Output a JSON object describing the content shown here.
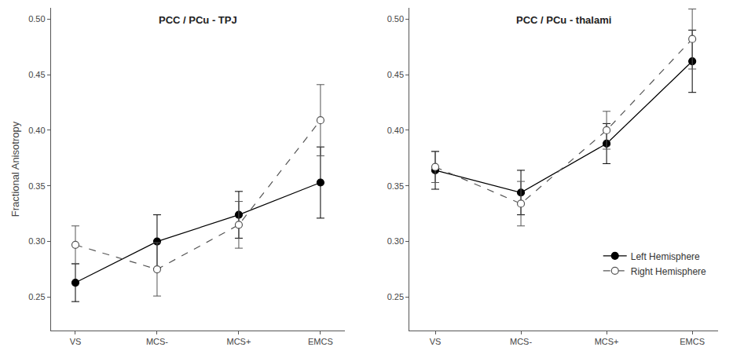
{
  "chart_data": [
    {
      "type": "line",
      "title": "PCC / PCu - TPJ",
      "y_label": "Fractional Anisotropy",
      "categories": [
        "VS",
        "MCS-",
        "MCS+",
        "EMCS"
      ],
      "ylim": [
        0.22,
        0.51
      ],
      "yticks": [
        0.25,
        {
          "value": 0.3,
          "label": "0.30"
        },
        0.35,
        {
          "value": 0.4,
          "label": "0.40"
        },
        0.45,
        {
          "value": 0.5,
          "label": "0.50"
        }
      ],
      "grid": false,
      "series": [
        {
          "name": "Left Hemisphere",
          "color": "#000000",
          "marker": "circle",
          "line_style": "solid",
          "values": [
            0.263,
            0.3,
            0.324,
            0.353
          ],
          "errors": [
            0.017,
            0.024,
            0.021,
            0.032
          ]
        },
        {
          "name": "Right Hemisphere",
          "color": "#555555",
          "marker": "circle-open",
          "line_style": "dash",
          "values": [
            0.297,
            0.275,
            0.315,
            0.409
          ],
          "errors": [
            0.017,
            0.024,
            0.021,
            0.032
          ]
        }
      ]
    },
    {
      "type": "line",
      "title": "PCC / PCu - thalami",
      "categories": [
        "VS",
        "MCS-",
        "MCS+",
        "EMCS"
      ],
      "ylim": [
        0.22,
        0.51
      ],
      "yticks": [
        0.25,
        {
          "value": 0.3,
          "label": "0.30"
        },
        0.35,
        {
          "value": 0.4,
          "label": "0.40"
        },
        0.45,
        {
          "value": 0.5,
          "label": "0.50"
        }
      ],
      "grid": false,
      "legend": "lower right",
      "series": [
        {
          "name": "Left Hemisphere",
          "color": "#000000",
          "marker": "circle",
          "line_style": "solid",
          "values": [
            0.364,
            0.344,
            0.388,
            0.462
          ],
          "errors": [
            0.017,
            0.02,
            0.018,
            0.028
          ]
        },
        {
          "name": "Right Hemisphere",
          "color": "#555555",
          "marker": "circle-open",
          "line_style": "dash",
          "values": [
            0.367,
            0.334,
            0.4,
            0.482
          ],
          "errors": [
            0.014,
            0.02,
            0.017,
            0.027
          ]
        }
      ]
    }
  ]
}
